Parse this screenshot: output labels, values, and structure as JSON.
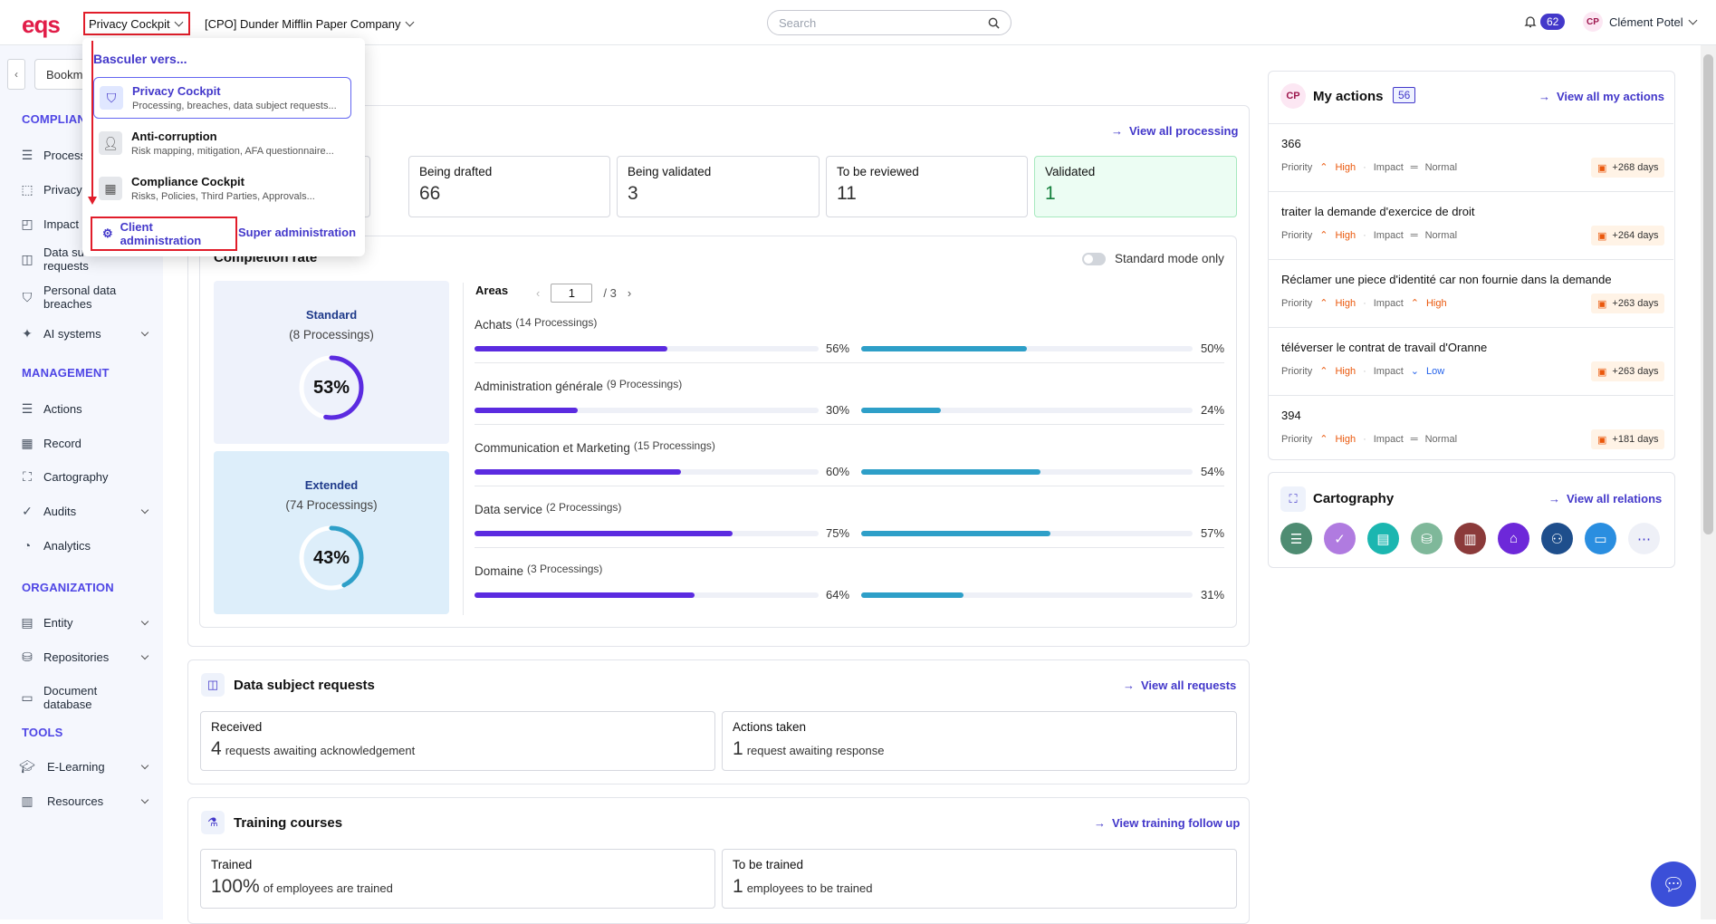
{
  "header": {
    "logo": "eqs",
    "product_selector": "Privacy Cockpit",
    "company_selector": "[CPO] Dunder Mifflin Paper Company",
    "search_placeholder": "Search",
    "notification_count": "62",
    "user_initials": "CP",
    "user_name": "Clément Potel"
  },
  "sidebar": {
    "bookmark_label": "Bookm",
    "sections": {
      "compliance": "COMPLIAN",
      "management": "MANAGEMENT",
      "organization": "ORGANIZATION",
      "tools": "TOOLS"
    },
    "items": [
      {
        "label": "Process",
        "icon": "list-icon"
      },
      {
        "label": "Privacy",
        "icon": "dots-frame-icon"
      },
      {
        "label": "Impact",
        "icon": "impact-icon"
      },
      {
        "label": "Data su\nrequests",
        "icon": "chat-icon"
      },
      {
        "label": "Personal data breaches",
        "icon": "shield-icon"
      },
      {
        "label": "AI systems",
        "icon": "sparkle-icon"
      },
      {
        "label": "Actions",
        "icon": "list-icon"
      },
      {
        "label": "Record",
        "icon": "table-icon"
      },
      {
        "label": "Cartography",
        "icon": "map-icon"
      },
      {
        "label": "Audits",
        "icon": "check-circle-icon"
      },
      {
        "label": "Analytics",
        "icon": "chart-icon"
      },
      {
        "label": "Entity",
        "icon": "building-icon"
      },
      {
        "label": "Repositories",
        "icon": "database-icon"
      },
      {
        "label": "Document database",
        "icon": "folder-icon"
      },
      {
        "label": "E-Learning",
        "icon": "graduation-icon"
      },
      {
        "label": "Resources",
        "icon": "book-icon"
      }
    ]
  },
  "dropdown": {
    "heading": "Basculer vers...",
    "items": [
      {
        "title": "Privacy Cockpit",
        "subtitle": "Processing, breaches, data subject requests..."
      },
      {
        "title": "Anti-corruption",
        "subtitle": "Risk mapping, mitigation, AFA questionnaire..."
      },
      {
        "title": "Compliance Cockpit",
        "subtitle": "Risks, Policies, Third Parties, Approvals..."
      }
    ],
    "client_admin": "Client administration",
    "super_admin": "Super administration"
  },
  "processing": {
    "view_all": "View all processing",
    "statuses": [
      {
        "label": "Being drafted",
        "value": "66"
      },
      {
        "label": "Being validated",
        "value": "3"
      },
      {
        "label": "To be reviewed",
        "value": "11"
      },
      {
        "label": "Validated",
        "value": "1"
      }
    ]
  },
  "completion": {
    "title": "Completion rate",
    "standard_mode_label": "Standard mode only",
    "standard": {
      "title": "Standard",
      "subtitle": "(8 Processings)",
      "percent": "53%",
      "value": 53
    },
    "extended": {
      "title": "Extended",
      "subtitle": "(74 Processings)",
      "percent": "43%",
      "value": 43
    },
    "areas_label": "Areas",
    "page": "1",
    "page_total": "/ 3",
    "areas": [
      {
        "name": "Achats",
        "count": "(14 Processings)",
        "standard": "56%",
        "extended": "50%",
        "s": 56,
        "e": 50
      },
      {
        "name": "Administration générale",
        "count": "(9 Processings)",
        "standard": "30%",
        "extended": "24%",
        "s": 30,
        "e": 24
      },
      {
        "name": "Communication et Marketing",
        "count": "(15 Processings)",
        "standard": "60%",
        "extended": "54%",
        "s": 60,
        "e": 54
      },
      {
        "name": "Data service",
        "count": "(2 Processings)",
        "standard": "75%",
        "extended": "57%",
        "s": 75,
        "e": 57
      },
      {
        "name": "Domaine",
        "count": "(3 Processings)",
        "standard": "64%",
        "extended": "31%",
        "s": 64,
        "e": 31
      }
    ],
    "colors": {
      "standard": "#5b2be0",
      "extended": "#2e9fc8"
    }
  },
  "dsr": {
    "title": "Data subject requests",
    "view_all": "View all requests",
    "received": {
      "label": "Received",
      "count": "4",
      "text": "requests awaiting acknowledgement"
    },
    "actions": {
      "label": "Actions taken",
      "count": "1",
      "text": "request awaiting response"
    }
  },
  "training": {
    "title": "Training courses",
    "view_all": "View training follow up",
    "trained": {
      "label": "Trained",
      "count": "100%",
      "text": "of employees are trained"
    },
    "to_train": {
      "label": "To be trained",
      "count": "1",
      "text": "employees to be trained"
    }
  },
  "my_actions": {
    "initials": "CP",
    "title": "My actions",
    "count": "56",
    "view_all": "View all my actions",
    "priority_label": "Priority",
    "impact_label": "Impact",
    "items": [
      {
        "title": "366",
        "priority": "High",
        "impact": "Normal",
        "days": "+268 days"
      },
      {
        "title": "traiter la demande d'exercice de droit",
        "priority": "High",
        "impact": "Normal",
        "days": "+264 days"
      },
      {
        "title": "Réclamer une piece d'identité car non fournie dans la demande",
        "priority": "High",
        "impact": "High",
        "days": "+263 days"
      },
      {
        "title": "téléverser le contrat de travail d'Oranne",
        "priority": "High",
        "impact": "Low",
        "days": "+263 days"
      },
      {
        "title": "394",
        "priority": "High",
        "impact": "Normal",
        "days": "+181 days"
      }
    ]
  },
  "cartography": {
    "title": "Cartography",
    "view_all": "View all relations",
    "icons": [
      {
        "name": "list-icon",
        "color": "#4e8c72"
      },
      {
        "name": "shield-check-icon",
        "color": "#b07be0"
      },
      {
        "name": "document-icon",
        "color": "#1bb6b0"
      },
      {
        "name": "database-icon",
        "color": "#7fb89a"
      },
      {
        "name": "register-icon",
        "color": "#8b3a3a"
      },
      {
        "name": "bank-icon",
        "color": "#6d28d9"
      },
      {
        "name": "people-icon",
        "color": "#1e4e8c"
      },
      {
        "name": "window-icon",
        "color": "#2a8ee0"
      },
      {
        "name": "more-icon",
        "color": "#eef0f7"
      }
    ]
  }
}
